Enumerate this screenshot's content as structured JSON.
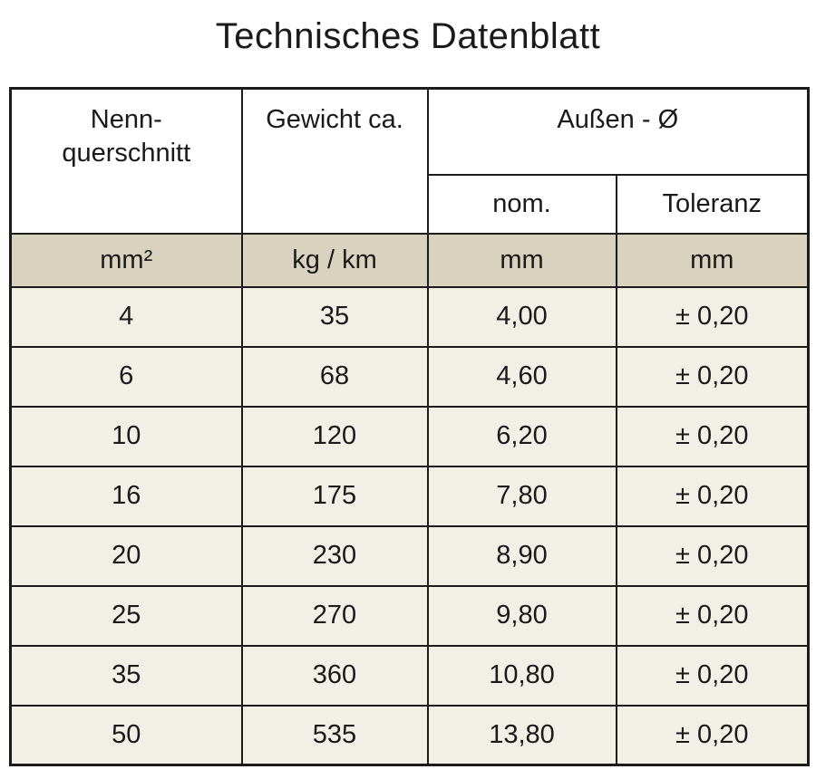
{
  "title": "Technisches Datenblatt",
  "table": {
    "headers": {
      "col1": "Nenn-\nquerschnitt",
      "col2": "Gewicht ca.",
      "outer_diameter_group": "Außen - Ø",
      "sub_nom": "nom.",
      "sub_tolerance": "Toleranz"
    },
    "units": [
      "mm²",
      "kg / km",
      "mm",
      "mm"
    ],
    "rows": [
      [
        "4",
        "35",
        "4,00",
        "± 0,20"
      ],
      [
        "6",
        "68",
        "4,60",
        "± 0,20"
      ],
      [
        "10",
        "120",
        "6,20",
        "± 0,20"
      ],
      [
        "16",
        "175",
        "7,80",
        "± 0,20"
      ],
      [
        "20",
        "230",
        "8,90",
        "± 0,20"
      ],
      [
        "25",
        "270",
        "9,80",
        "± 0,20"
      ],
      [
        "35",
        "360",
        "10,80",
        "± 0,20"
      ],
      [
        "50",
        "535",
        "13,80",
        "± 0,20"
      ]
    ],
    "colors": {
      "header_bg": "#ffffff",
      "units_row_bg": "#d8d2bf",
      "data_row_bg": "#f2efe6",
      "border": "#1b1b19",
      "text": "#1a1a1a"
    }
  }
}
